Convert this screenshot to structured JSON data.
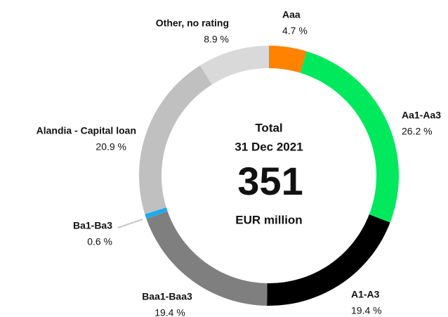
{
  "chart_data": {
    "type": "donut",
    "categories": [
      "Aaa",
      "Aa1-Aa3",
      "A1-A3",
      "Baa1-Baa3",
      "Ba1-Ba3",
      "Alandia - Capital loan",
      "Other, no rating"
    ],
    "values": [
      4.7,
      26.2,
      19.4,
      19.4,
      0.6,
      20.9,
      8.9
    ],
    "value_labels": [
      "4.7 %",
      "26.2 %",
      "19.4 %",
      "19.4 %",
      "0.6 %",
      "20.9 %",
      "8.9 %"
    ],
    "colors": [
      "#ff8200",
      "#00e85c",
      "#000000",
      "#7f7f7f",
      "#1fa9ef",
      "#c0c0c0",
      "#d9d9d9"
    ],
    "center": {
      "line1": "Total",
      "line2": "31 Dec 2021",
      "total": "351",
      "unit": "EUR million"
    }
  }
}
